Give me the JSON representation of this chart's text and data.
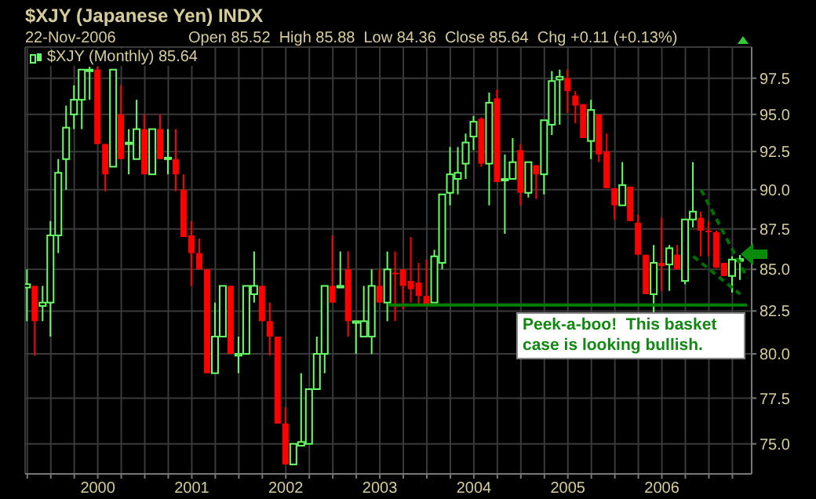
{
  "chart_data": {
    "type": "candlestick",
    "title": "$XJY (Japanese Yen) INDX",
    "subtitle": "22-Nov-2006",
    "annotations": [
      "Open 85.52  High 85.88  Low 84.36  Close 85.64  Chg +0.11 (+0.13%)",
      "Peek-a-boo!  This basket case is looking bullish."
    ],
    "log": true,
    "grid": true,
    "legend": "top left",
    "ylim": [
      73.4,
      99.7
    ],
    "yticks": [
      {
        "value": 75,
        "label": "75.0"
      },
      {
        "value": 77.5,
        "label": "77.5"
      },
      {
        "value": 80,
        "label": "80.0"
      },
      {
        "value": 82.5,
        "label": "82.5"
      },
      {
        "value": 85,
        "label": "85.0"
      },
      {
        "value": 87.5,
        "label": "87.5"
      },
      {
        "value": 90,
        "label": "90.0"
      },
      {
        "value": 92.5,
        "label": "92.5"
      },
      {
        "value": 95,
        "label": "95.0"
      },
      {
        "value": 97.5,
        "label": "97.5"
      }
    ],
    "xlim": [
      "1999-03-23",
      "2006-12-15"
    ],
    "xticks": [
      {
        "value": "1999-04",
        "label": null
      },
      {
        "value": "1999-07",
        "label": null
      },
      {
        "value": "1999-10",
        "label": null
      },
      "2000",
      {
        "value": "2000-04",
        "label": null
      },
      {
        "value": "2000-07",
        "label": null
      },
      {
        "value": "2000-10",
        "label": null
      },
      "2001",
      {
        "value": "2001-04",
        "label": null
      },
      {
        "value": "2001-07",
        "label": null
      },
      {
        "value": "2001-10",
        "label": null
      },
      "2002",
      {
        "value": "2002-04",
        "label": null
      },
      {
        "value": "2002-07",
        "label": null
      },
      {
        "value": "2002-10",
        "label": null
      },
      "2003",
      {
        "value": "2003-04",
        "label": null
      },
      {
        "value": "2003-07",
        "label": null
      },
      {
        "value": "2003-10",
        "label": null
      },
      "2004",
      {
        "value": "2004-04",
        "label": null
      },
      {
        "value": "2004-07",
        "label": null
      },
      {
        "value": "2004-10",
        "label": null
      },
      "2005",
      {
        "value": "2005-04",
        "label": null
      },
      {
        "value": "2005-07",
        "label": null
      },
      {
        "value": "2005-10",
        "label": null
      },
      "2006",
      {
        "value": "2006-04",
        "label": null
      },
      {
        "value": "2006-07",
        "label": null
      },
      {
        "value": "2006-10",
        "label": null
      }
    ],
    "x": [
      "1999-04",
      "1999-05",
      "1999-06",
      "1999-07",
      "1999-08",
      "1999-09",
      "1999-10",
      "1999-11",
      "1999-12",
      "2000-01",
      "2000-02",
      "2000-03",
      "2000-04",
      "2000-05",
      "2000-06",
      "2000-07",
      "2000-08",
      "2000-09",
      "2000-10",
      "2000-11",
      "2000-12",
      "2001-01",
      "2001-02",
      "2001-03",
      "2001-04",
      "2001-05",
      "2001-06",
      "2001-07",
      "2001-08",
      "2001-09",
      "2001-10",
      "2001-11",
      "2001-12",
      "2002-01",
      "2002-02",
      "2002-03",
      "2002-04",
      "2002-05",
      "2002-06",
      "2002-07",
      "2002-08",
      "2002-09",
      "2002-10",
      "2002-11",
      "2002-12",
      "2003-01",
      "2003-02",
      "2003-03",
      "2003-04",
      "2003-05",
      "2003-06",
      "2003-07",
      "2003-08",
      "2003-09",
      "2003-10",
      "2003-11",
      "2003-12",
      "2004-01",
      "2004-02",
      "2004-03",
      "2004-04",
      "2004-05",
      "2004-06",
      "2004-07",
      "2004-08",
      "2004-09",
      "2004-10",
      "2004-11",
      "2004-12",
      "2005-01",
      "2005-02",
      "2005-03",
      "2005-04",
      "2005-05",
      "2005-06",
      "2005-07",
      "2005-08",
      "2005-09",
      "2005-10",
      "2005-11",
      "2005-12",
      "2006-01",
      "2006-02",
      "2006-03",
      "2006-04",
      "2006-05",
      "2006-06",
      "2006-07",
      "2006-08",
      "2006-09",
      "2006-10",
      "2006-11"
    ],
    "series": [
      {
        "name": "$XJY (Monthly) 85.64",
        "ohlc": [
          [
            83.9,
            85.0,
            81.9,
            84.1
          ],
          [
            84.0,
            84.0,
            79.9,
            81.9
          ],
          [
            82.8,
            84.0,
            81.9,
            83.0
          ],
          [
            83.0,
            88.0,
            81.0,
            87.1
          ],
          [
            87.1,
            92.0,
            86.0,
            91.1
          ],
          [
            92.0,
            95.6,
            90.0,
            94.1
          ],
          [
            95.0,
            97.0,
            94.0,
            96.0
          ],
          [
            96.0,
            98.1,
            94.0,
            98.1
          ],
          [
            98.0,
            98.3,
            96.0,
            98.1
          ],
          [
            98.1,
            98.3,
            93.0,
            93.0
          ],
          [
            93.0,
            93.0,
            89.9,
            91.0
          ],
          [
            91.5,
            98.1,
            91.5,
            98.1
          ],
          [
            95.0,
            97.0,
            92.0,
            92.0
          ],
          [
            93.0,
            94.0,
            91.0,
            93.1
          ],
          [
            92.0,
            96.0,
            92.0,
            94.0
          ],
          [
            94.0,
            95.0,
            91.0,
            91.0
          ],
          [
            91.0,
            94.0,
            91.0,
            94.0
          ],
          [
            94.0,
            95.0,
            92.0,
            92.0
          ],
          [
            92.0,
            94.0,
            91.0,
            92.1
          ],
          [
            92.0,
            94.0,
            89.9,
            91.0
          ],
          [
            90.0,
            91.0,
            87.0,
            87.0
          ],
          [
            87.1,
            88.0,
            84.0,
            86.0
          ],
          [
            86.0,
            86.9,
            85.0,
            85.0
          ],
          [
            85.0,
            85.0,
            78.9,
            78.9
          ],
          [
            78.9,
            83.0,
            78.9,
            81.0
          ],
          [
            81.0,
            84.0,
            81.0,
            84.0
          ],
          [
            84.0,
            84.0,
            80.0,
            80.0
          ],
          [
            79.9,
            81.0,
            78.9,
            80.0
          ],
          [
            80.0,
            84.0,
            80.0,
            84.0
          ],
          [
            83.5,
            86.1,
            83.0,
            84.0
          ],
          [
            84.0,
            84.0,
            81.9,
            81.9
          ],
          [
            81.9,
            83.0,
            79.9,
            81.0
          ],
          [
            81.0,
            81.0,
            76.1,
            76.1
          ],
          [
            76.1,
            77.0,
            73.9,
            73.9
          ],
          [
            73.9,
            75.0,
            73.9,
            75.0
          ],
          [
            74.9,
            78.9,
            74.9,
            75.1
          ],
          [
            75.0,
            78.0,
            75.0,
            78.0
          ],
          [
            78.0,
            81.0,
            78.0,
            80.0
          ],
          [
            80.0,
            84.0,
            78.9,
            84.0
          ],
          [
            84.0,
            87.1,
            83.0,
            83.0
          ],
          [
            83.9,
            86.1,
            83.9,
            84.0
          ],
          [
            85.0,
            86.1,
            81.0,
            81.9
          ],
          [
            81.8,
            81.9,
            80.0,
            81.9
          ],
          [
            81.0,
            84.0,
            81.0,
            81.9
          ],
          [
            81.0,
            85.0,
            80.0,
            84.0
          ],
          [
            84.0,
            85.0,
            83.0,
            83.0
          ],
          [
            83.0,
            86.1,
            81.9,
            85.0
          ],
          [
            84.8,
            86.1,
            81.9,
            84.7
          ],
          [
            85.0,
            85.0,
            82.6,
            84.0
          ],
          [
            84.3,
            87.0,
            83.0,
            83.8
          ],
          [
            84.2,
            85.4,
            82.9,
            83.4
          ],
          [
            83.4,
            85.6,
            82.9,
            82.9
          ],
          [
            83.0,
            86.2,
            83.0,
            85.8
          ],
          [
            85.4,
            89.7,
            85.0,
            89.7
          ],
          [
            89.8,
            92.8,
            89.0,
            91.0
          ],
          [
            90.7,
            92.8,
            89.7,
            91.1
          ],
          [
            91.7,
            93.7,
            90.7,
            93.1
          ],
          [
            93.5,
            94.9,
            92.6,
            94.5
          ],
          [
            94.7,
            94.8,
            91.5,
            91.7
          ],
          [
            91.7,
            96.5,
            89.0,
            95.8
          ],
          [
            96.1,
            96.7,
            90.5,
            90.5
          ],
          [
            90.6,
            92.3,
            87.2,
            90.7
          ],
          [
            90.7,
            93.4,
            90.7,
            91.8
          ],
          [
            92.6,
            93.0,
            89.0,
            89.8
          ],
          [
            89.8,
            91.8,
            89.5,
            91.8
          ],
          [
            91.6,
            91.6,
            89.4,
            91.0
          ],
          [
            91.0,
            94.6,
            89.7,
            94.6
          ],
          [
            94.3,
            98.0,
            93.6,
            97.3
          ],
          [
            97.4,
            98.1,
            94.3,
            97.6
          ],
          [
            97.5,
            98.1,
            95.1,
            96.6
          ],
          [
            96.3,
            96.6,
            94.4,
            95.6
          ],
          [
            95.7,
            95.7,
            93.4,
            93.4
          ],
          [
            93.2,
            96.0,
            92.0,
            95.3
          ],
          [
            95.0,
            95.0,
            91.8,
            92.3
          ],
          [
            92.5,
            93.7,
            90.1,
            90.1
          ],
          [
            90.1,
            90.1,
            88.1,
            89.0
          ],
          [
            89.0,
            91.8,
            89.0,
            90.3
          ],
          [
            90.2,
            90.2,
            88.0,
            88.0
          ],
          [
            87.9,
            88.4,
            85.9,
            85.9
          ],
          [
            85.9,
            85.9,
            83.5,
            83.5
          ],
          [
            83.5,
            86.5,
            82.4,
            85.4
          ],
          [
            85.4,
            88.2,
            83.7,
            85.2
          ],
          [
            85.3,
            86.5,
            83.7,
            86.3
          ],
          [
            85.9,
            86.5,
            85.0,
            85.0
          ],
          [
            84.3,
            88.1,
            84.1,
            88.1
          ],
          [
            88.1,
            91.8,
            87.6,
            88.6
          ],
          [
            88.2,
            88.6,
            85.8,
            87.4
          ],
          [
            87.4,
            88.0,
            85.8,
            87.3
          ],
          [
            87.3,
            87.4,
            85.1,
            85.1
          ],
          [
            85.4,
            85.4,
            84.6,
            84.6
          ],
          [
            84.6,
            85.8,
            83.6,
            85.6
          ],
          [
            85.52,
            85.88,
            84.36,
            85.64
          ]
        ],
        "colors": [
          "#66ff66",
          "#ff0000",
          "#66ff66",
          "#66ff66",
          "#66ff66",
          "#66ff66",
          "#66ff66",
          "#66ff66",
          "#66ff66",
          "#ff0000",
          "#ff0000",
          "#66ff66",
          "#ff0000",
          "#66ff66",
          "#66ff66",
          "#ff0000",
          "#66ff66",
          "#ff0000",
          "#66ff66",
          "#ff0000",
          "#ff0000",
          "#ff0000",
          "#ff0000",
          "#ff0000",
          "#66ff66",
          "#66ff66",
          "#ff0000",
          "#66ff66",
          "#66ff66",
          "#66ff66",
          "#ff0000",
          "#ff0000",
          "#ff0000",
          "#ff0000",
          "#66ff66",
          "#66ff66",
          "#66ff66",
          "#66ff66",
          "#66ff66",
          "#ff0000",
          "#66ff66",
          "#ff0000",
          "#66ff66",
          "#66ff66",
          "#66ff66",
          "#ff0000",
          "#66ff66",
          "#ff0000",
          "#ff0000",
          "#ff0000",
          "#ff0000",
          "#ff0000",
          "#66ff66",
          "#66ff66",
          "#66ff66",
          "#66ff66",
          "#66ff66",
          "#66ff66",
          "#ff0000",
          "#66ff66",
          "#ff0000",
          "#66ff66",
          "#66ff66",
          "#ff0000",
          "#66ff66",
          "#ff0000",
          "#66ff66",
          "#66ff66",
          "#66ff66",
          "#ff0000",
          "#ff0000",
          "#ff0000",
          "#66ff66",
          "#ff0000",
          "#ff0000",
          "#ff0000",
          "#66ff66",
          "#ff0000",
          "#ff0000",
          "#ff0000",
          "#66ff66",
          "#ff0000",
          "#66ff66",
          "#ff0000",
          "#66ff66",
          "#66ff66",
          "#ff0000",
          "#ff0000",
          "#ff0000",
          "#ff0000",
          "#66ff66",
          "#66ff66"
        ]
      },
      {
        "type": "line",
        "color": "#008000",
        "x": [
          "2003-02",
          "2006-11-28"
        ],
        "values": [
          82.85,
          82.85
        ]
      },
      {
        "type": "line",
        "color": "#007000",
        "line_style": "dashed",
        "x": [
          "2006-06",
          "2006-11-28"
        ],
        "values": [
          90.0,
          84.5
        ]
      },
      {
        "type": "line",
        "color": "#007000",
        "line_style": "dashed",
        "x": [
          "2006-05",
          "2006-11"
        ],
        "values": [
          85.8,
          83.5
        ]
      }
    ]
  }
}
